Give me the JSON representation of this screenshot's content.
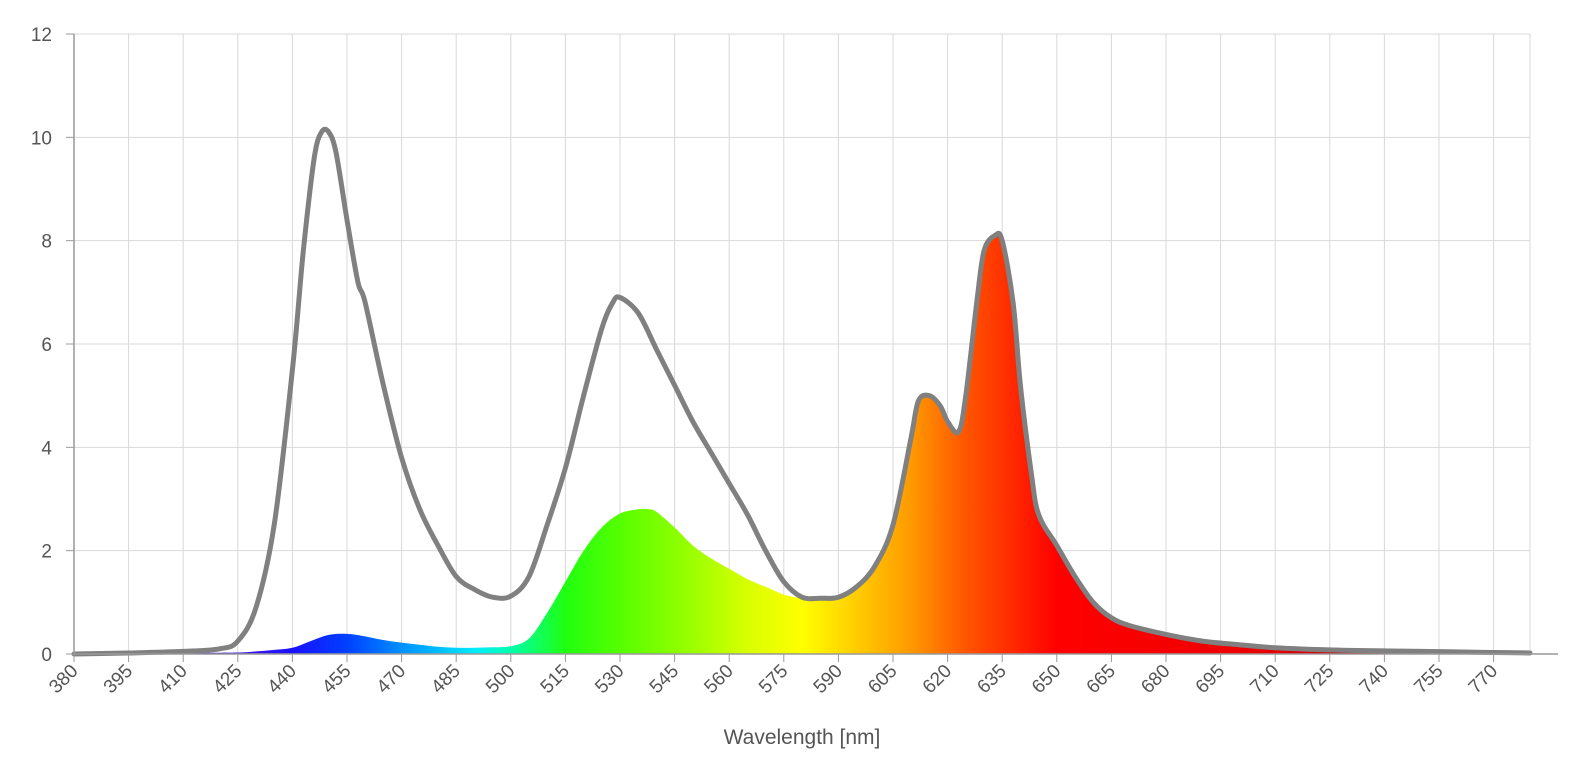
{
  "chart_data": {
    "type": "area",
    "xlabel": "Wavelength [nm]",
    "ylabel": "",
    "xlim": [
      380,
      780
    ],
    "ylim": [
      0,
      12
    ],
    "grid": true,
    "legend": "none",
    "x_ticks": [
      380,
      395,
      410,
      425,
      440,
      455,
      470,
      485,
      500,
      515,
      530,
      545,
      560,
      575,
      590,
      605,
      620,
      635,
      650,
      665,
      680,
      695,
      710,
      725,
      740,
      755,
      770
    ],
    "y_ticks": [
      0,
      2,
      4,
      6,
      8,
      10,
      12
    ],
    "colors": {
      "outline": "#808080",
      "grid": "#d9d9d9",
      "axis": "#999999"
    },
    "series": [
      {
        "color": "#808080",
        "style": "outline",
        "x": [
          380,
          395,
          410,
          420,
          425,
          430,
          435,
          440,
          443,
          446,
          448,
          450,
          452,
          455,
          458,
          460,
          465,
          470,
          475,
          480,
          485,
          490,
          495,
          500,
          505,
          510,
          515,
          520,
          525,
          528,
          530,
          535,
          540,
          545,
          550,
          555,
          560,
          565,
          570,
          575,
          580,
          585,
          590,
          595,
          600,
          605,
          610,
          612,
          615,
          618,
          620,
          623,
          625,
          628,
          630,
          633,
          635,
          638,
          640,
          643,
          645,
          650,
          655,
          660,
          665,
          670,
          680,
          690,
          700,
          710,
          720,
          730,
          740,
          750,
          760,
          770,
          780
        ],
        "values": [
          0.0,
          0.02,
          0.05,
          0.1,
          0.25,
          0.9,
          2.5,
          5.5,
          7.8,
          9.6,
          10.1,
          10.1,
          9.7,
          8.4,
          7.2,
          6.8,
          5.2,
          3.8,
          2.8,
          2.1,
          1.5,
          1.25,
          1.1,
          1.12,
          1.5,
          2.5,
          3.6,
          5.0,
          6.3,
          6.8,
          6.9,
          6.6,
          5.9,
          5.2,
          4.5,
          3.9,
          3.3,
          2.7,
          2.0,
          1.4,
          1.1,
          1.08,
          1.1,
          1.3,
          1.7,
          2.5,
          4.2,
          4.9,
          5.0,
          4.8,
          4.5,
          4.3,
          5.0,
          6.8,
          7.8,
          8.1,
          8.0,
          6.8,
          5.2,
          3.5,
          2.7,
          2.1,
          1.5,
          1.0,
          0.7,
          0.55,
          0.38,
          0.25,
          0.18,
          0.12,
          0.09,
          0.07,
          0.06,
          0.05,
          0.04,
          0.03,
          0.02
        ]
      },
      {
        "color": "spectral",
        "style": "filled",
        "x": [
          380,
          395,
          410,
          425,
          430,
          435,
          440,
          445,
          450,
          455,
          460,
          465,
          470,
          475,
          480,
          485,
          490,
          495,
          500,
          505,
          510,
          515,
          520,
          525,
          530,
          535,
          538,
          540,
          545,
          550,
          555,
          560,
          565,
          570,
          575,
          580,
          585,
          590,
          595,
          600,
          605,
          610,
          612,
          615,
          618,
          620,
          623,
          625,
          628,
          630,
          633,
          635,
          638,
          640,
          643,
          645,
          650,
          655,
          660,
          665,
          670,
          680,
          690,
          700,
          710,
          720,
          730,
          740,
          750,
          760,
          770,
          780
        ],
        "values": [
          0.0,
          0.01,
          0.02,
          0.03,
          0.05,
          0.08,
          0.12,
          0.25,
          0.37,
          0.39,
          0.34,
          0.27,
          0.22,
          0.18,
          0.14,
          0.12,
          0.12,
          0.13,
          0.15,
          0.3,
          0.8,
          1.4,
          2.0,
          2.45,
          2.72,
          2.8,
          2.8,
          2.75,
          2.45,
          2.1,
          1.85,
          1.65,
          1.45,
          1.3,
          1.15,
          1.08,
          1.07,
          1.1,
          1.3,
          1.7,
          2.5,
          4.2,
          4.9,
          5.0,
          4.8,
          4.5,
          4.3,
          5.0,
          6.8,
          7.8,
          8.1,
          8.0,
          6.8,
          5.2,
          3.5,
          2.7,
          2.1,
          1.5,
          1.0,
          0.7,
          0.55,
          0.38,
          0.25,
          0.18,
          0.12,
          0.09,
          0.07,
          0.06,
          0.05,
          0.04,
          0.03,
          0.02
        ]
      }
    ]
  }
}
